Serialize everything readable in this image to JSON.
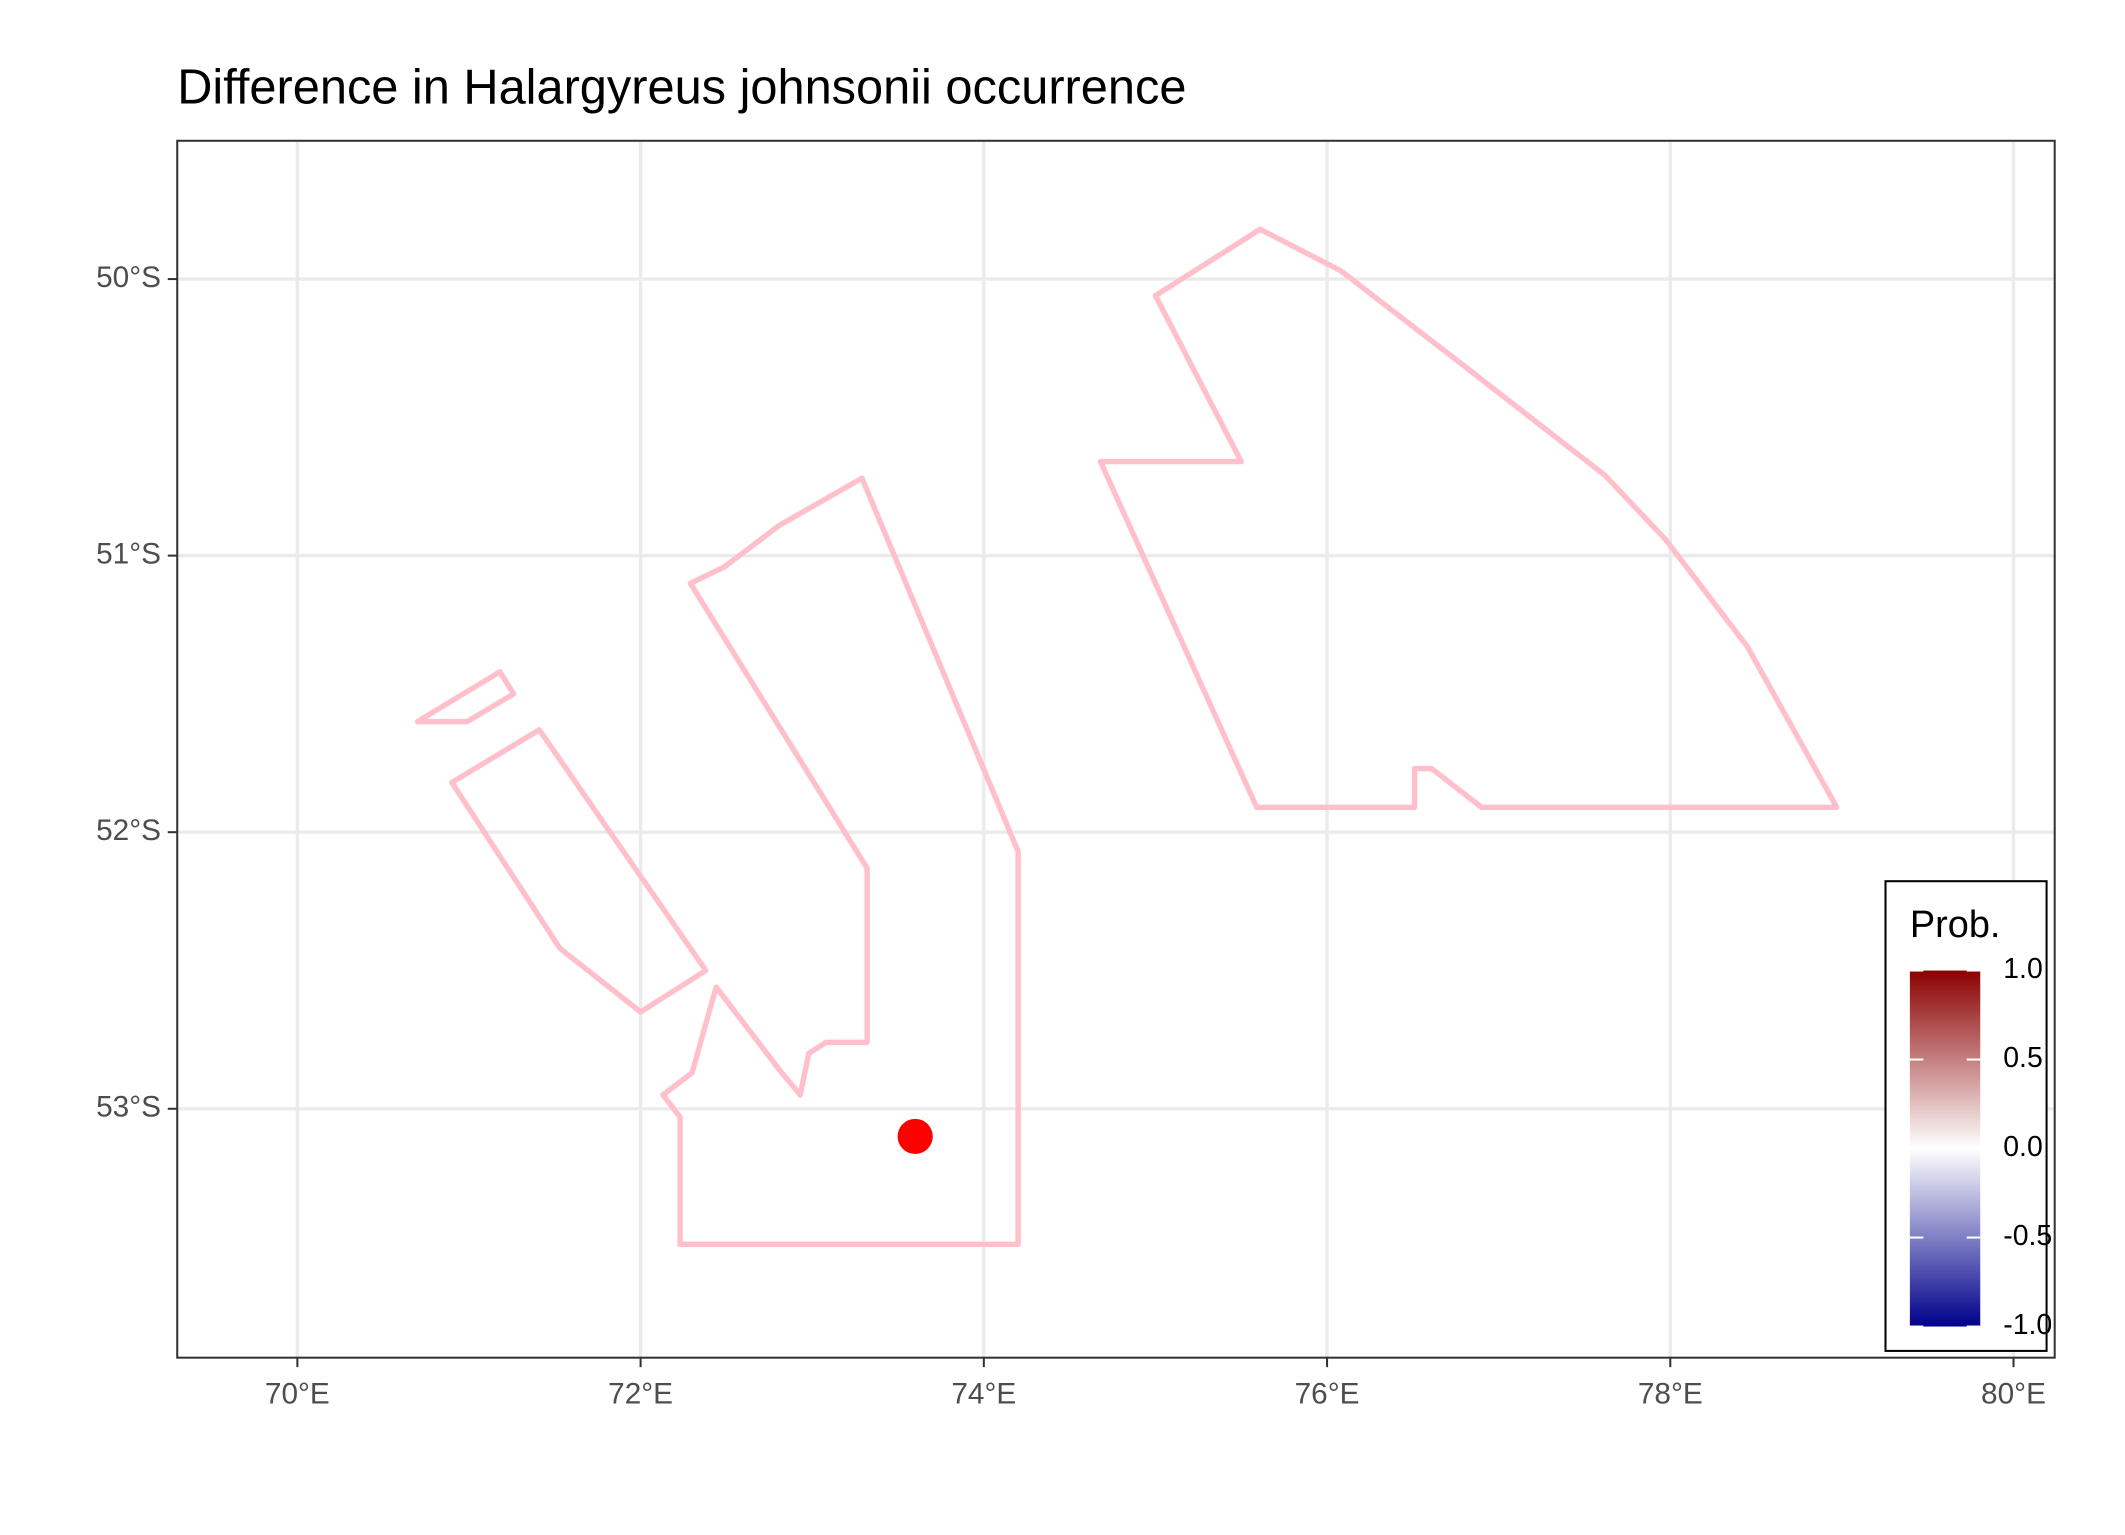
{
  "chart_data": {
    "type": "map",
    "title": "Difference in  Halargyreus johnsonii occurrence",
    "xlim": [
      69.3,
      80.24
    ],
    "ylim": [
      -53.9,
      -49.5
    ],
    "xticks": [
      {
        "value": 70,
        "label": "70°E"
      },
      {
        "value": 72,
        "label": "72°E"
      },
      {
        "value": 74,
        "label": "74°E"
      },
      {
        "value": 76,
        "label": "76°E"
      },
      {
        "value": 78,
        "label": "78°E"
      },
      {
        "value": 80,
        "label": "80°E"
      }
    ],
    "yticks": [
      {
        "value": -50,
        "label": "50°S"
      },
      {
        "value": -51,
        "label": "51°S"
      },
      {
        "value": -52,
        "label": "52°S"
      },
      {
        "value": -53,
        "label": "53°S"
      }
    ],
    "grid": true,
    "polygon_color": "#ffc0cb",
    "polygons": [
      {
        "lon": [
          75.61,
          75.0,
          75.5,
          74.68,
          75.59,
          76.51,
          76.51,
          76.61,
          76.9,
          78.97,
          78.45,
          77.97,
          77.62,
          76.79,
          76.08
        ],
        "lat": [
          -49.82,
          -50.06,
          -50.66,
          -50.66,
          -51.91,
          -51.91,
          -51.77,
          -51.77,
          -51.91,
          -51.91,
          -51.33,
          -50.94,
          -50.71,
          -50.31,
          -49.97
        ]
      },
      {
        "lon": [
          73.29,
          72.81,
          72.49,
          72.29,
          73.32,
          73.32,
          73.08,
          72.98,
          72.93,
          72.81,
          72.44,
          72.3,
          72.13,
          72.23,
          72.23,
          74.2,
          74.2
        ],
        "lat": [
          -50.72,
          -50.89,
          -51.04,
          -51.1,
          -52.13,
          -52.76,
          -52.76,
          -52.8,
          -52.95,
          -52.86,
          -52.56,
          -52.87,
          -52.95,
          -53.03,
          -53.49,
          -53.49,
          -52.07
        ]
      },
      {
        "lon": [
          71.41,
          70.9,
          71.53,
          72.0,
          72.38
        ],
        "lat": [
          -51.63,
          -51.82,
          -52.42,
          -52.65,
          -52.5
        ]
      },
      {
        "lon": [
          71.18,
          70.7,
          70.99,
          71.26
        ],
        "lat": [
          -51.42,
          -51.6,
          -51.6,
          -51.5
        ]
      }
    ],
    "points": {
      "lon": [
        73.6
      ],
      "lat": [
        -53.1
      ],
      "color": "#ff0000"
    },
    "legend": {
      "title": "Prob.",
      "lim": [
        -1,
        1
      ],
      "colors": [
        "#00008b",
        "#ffffff",
        "#8b0000"
      ],
      "ticks": [
        {
          "value": 1,
          "label": "1.0"
        },
        {
          "value": 0.5,
          "label": "0.5"
        },
        {
          "value": 0,
          "label": "0.0"
        },
        {
          "value": -0.5,
          "label": "-0.5"
        },
        {
          "value": -1,
          "label": "-1.0"
        }
      ]
    }
  }
}
